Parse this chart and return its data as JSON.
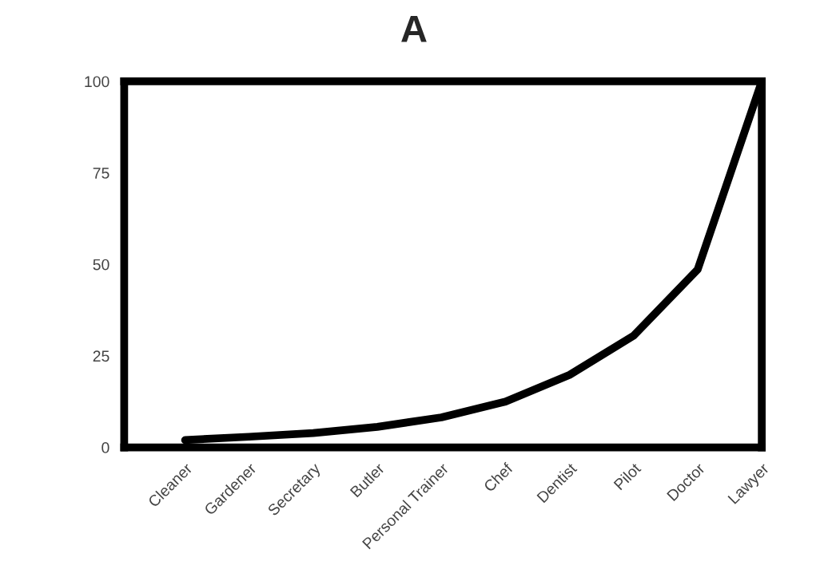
{
  "chart_data": {
    "type": "line",
    "title": "A",
    "categories": [
      "Cleaner",
      "Gardener",
      "Secretary",
      "Butler",
      "Personal Trainer",
      "Chef",
      "Dentist",
      "Pilot",
      "Doctor",
      "Lawyer"
    ],
    "series": [
      {
        "color": "#000000",
        "values": [
          2,
          2.9,
          3.9,
          5.6,
          8.2,
          12.5,
          19.8,
          30.5,
          48.6,
          100
        ]
      }
    ],
    "ylim": [
      0,
      100
    ],
    "yticks": [
      0,
      25,
      50,
      75,
      100
    ],
    "grid": false,
    "legend": false,
    "marker": "none",
    "line_style": "solid"
  }
}
